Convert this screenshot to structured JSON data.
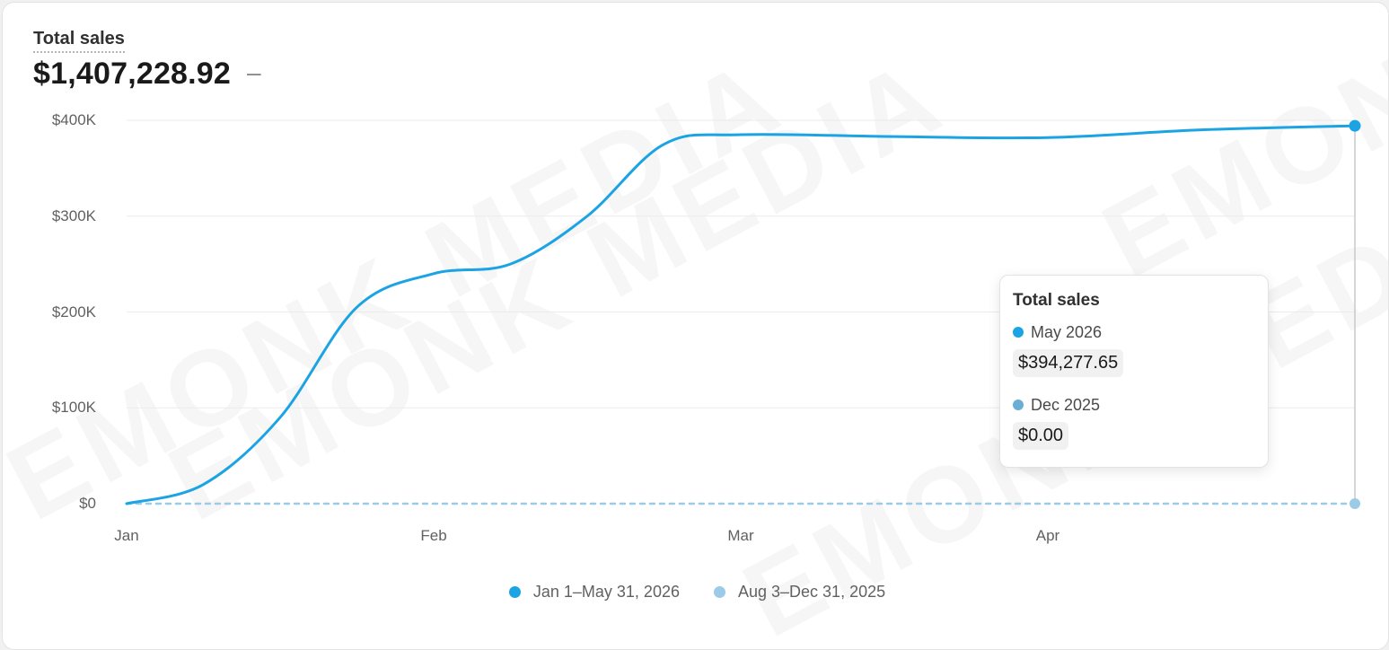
{
  "card": {
    "title": "Total sales",
    "value": "$1,407,228.92",
    "change": "–"
  },
  "chart_data": {
    "type": "line",
    "title": "Total sales",
    "x_ticks": [
      "Jan",
      "Feb",
      "Mar",
      "Apr"
    ],
    "y_ticks": [
      "$0",
      "$100K",
      "$200K",
      "$300K",
      "$400K"
    ],
    "ylim": [
      0,
      400000
    ],
    "x_domain": [
      0,
      4
    ],
    "grid": true,
    "legend_position": "bottom",
    "series": [
      {
        "name": "Jan 1–May 31, 2026",
        "color": "#1ba3e4",
        "style": "solid",
        "x": [
          0,
          0.25,
          0.5,
          0.75,
          1,
          1.25,
          1.5,
          1.75,
          2,
          2.5,
          3,
          3.5,
          4
        ],
        "values": [
          0,
          20000,
          90000,
          205000,
          240000,
          250000,
          300000,
          375000,
          385000,
          383000,
          382000,
          390000,
          394277.65
        ]
      },
      {
        "name": "Aug 3–Dec 31, 2025",
        "color": "#9ccbe8",
        "style": "dashed",
        "x": [
          0,
          4
        ],
        "values": [
          0,
          0
        ]
      }
    ]
  },
  "tooltip": {
    "title": "Total sales",
    "rows": [
      {
        "label": "May 2026",
        "value": "$394,277.65",
        "color": "#1ba3e4"
      },
      {
        "label": "Dec 2025",
        "value": "$0.00",
        "color": "#6aaed6"
      }
    ]
  },
  "legend": {
    "items": [
      {
        "label": "Jan 1–May 31, 2026",
        "color": "#1ba3e4"
      },
      {
        "label": "Aug 3–Dec 31, 2025",
        "color": "#9ccbe8"
      }
    ]
  },
  "watermark": {
    "text": "EMONK MEDIA"
  }
}
